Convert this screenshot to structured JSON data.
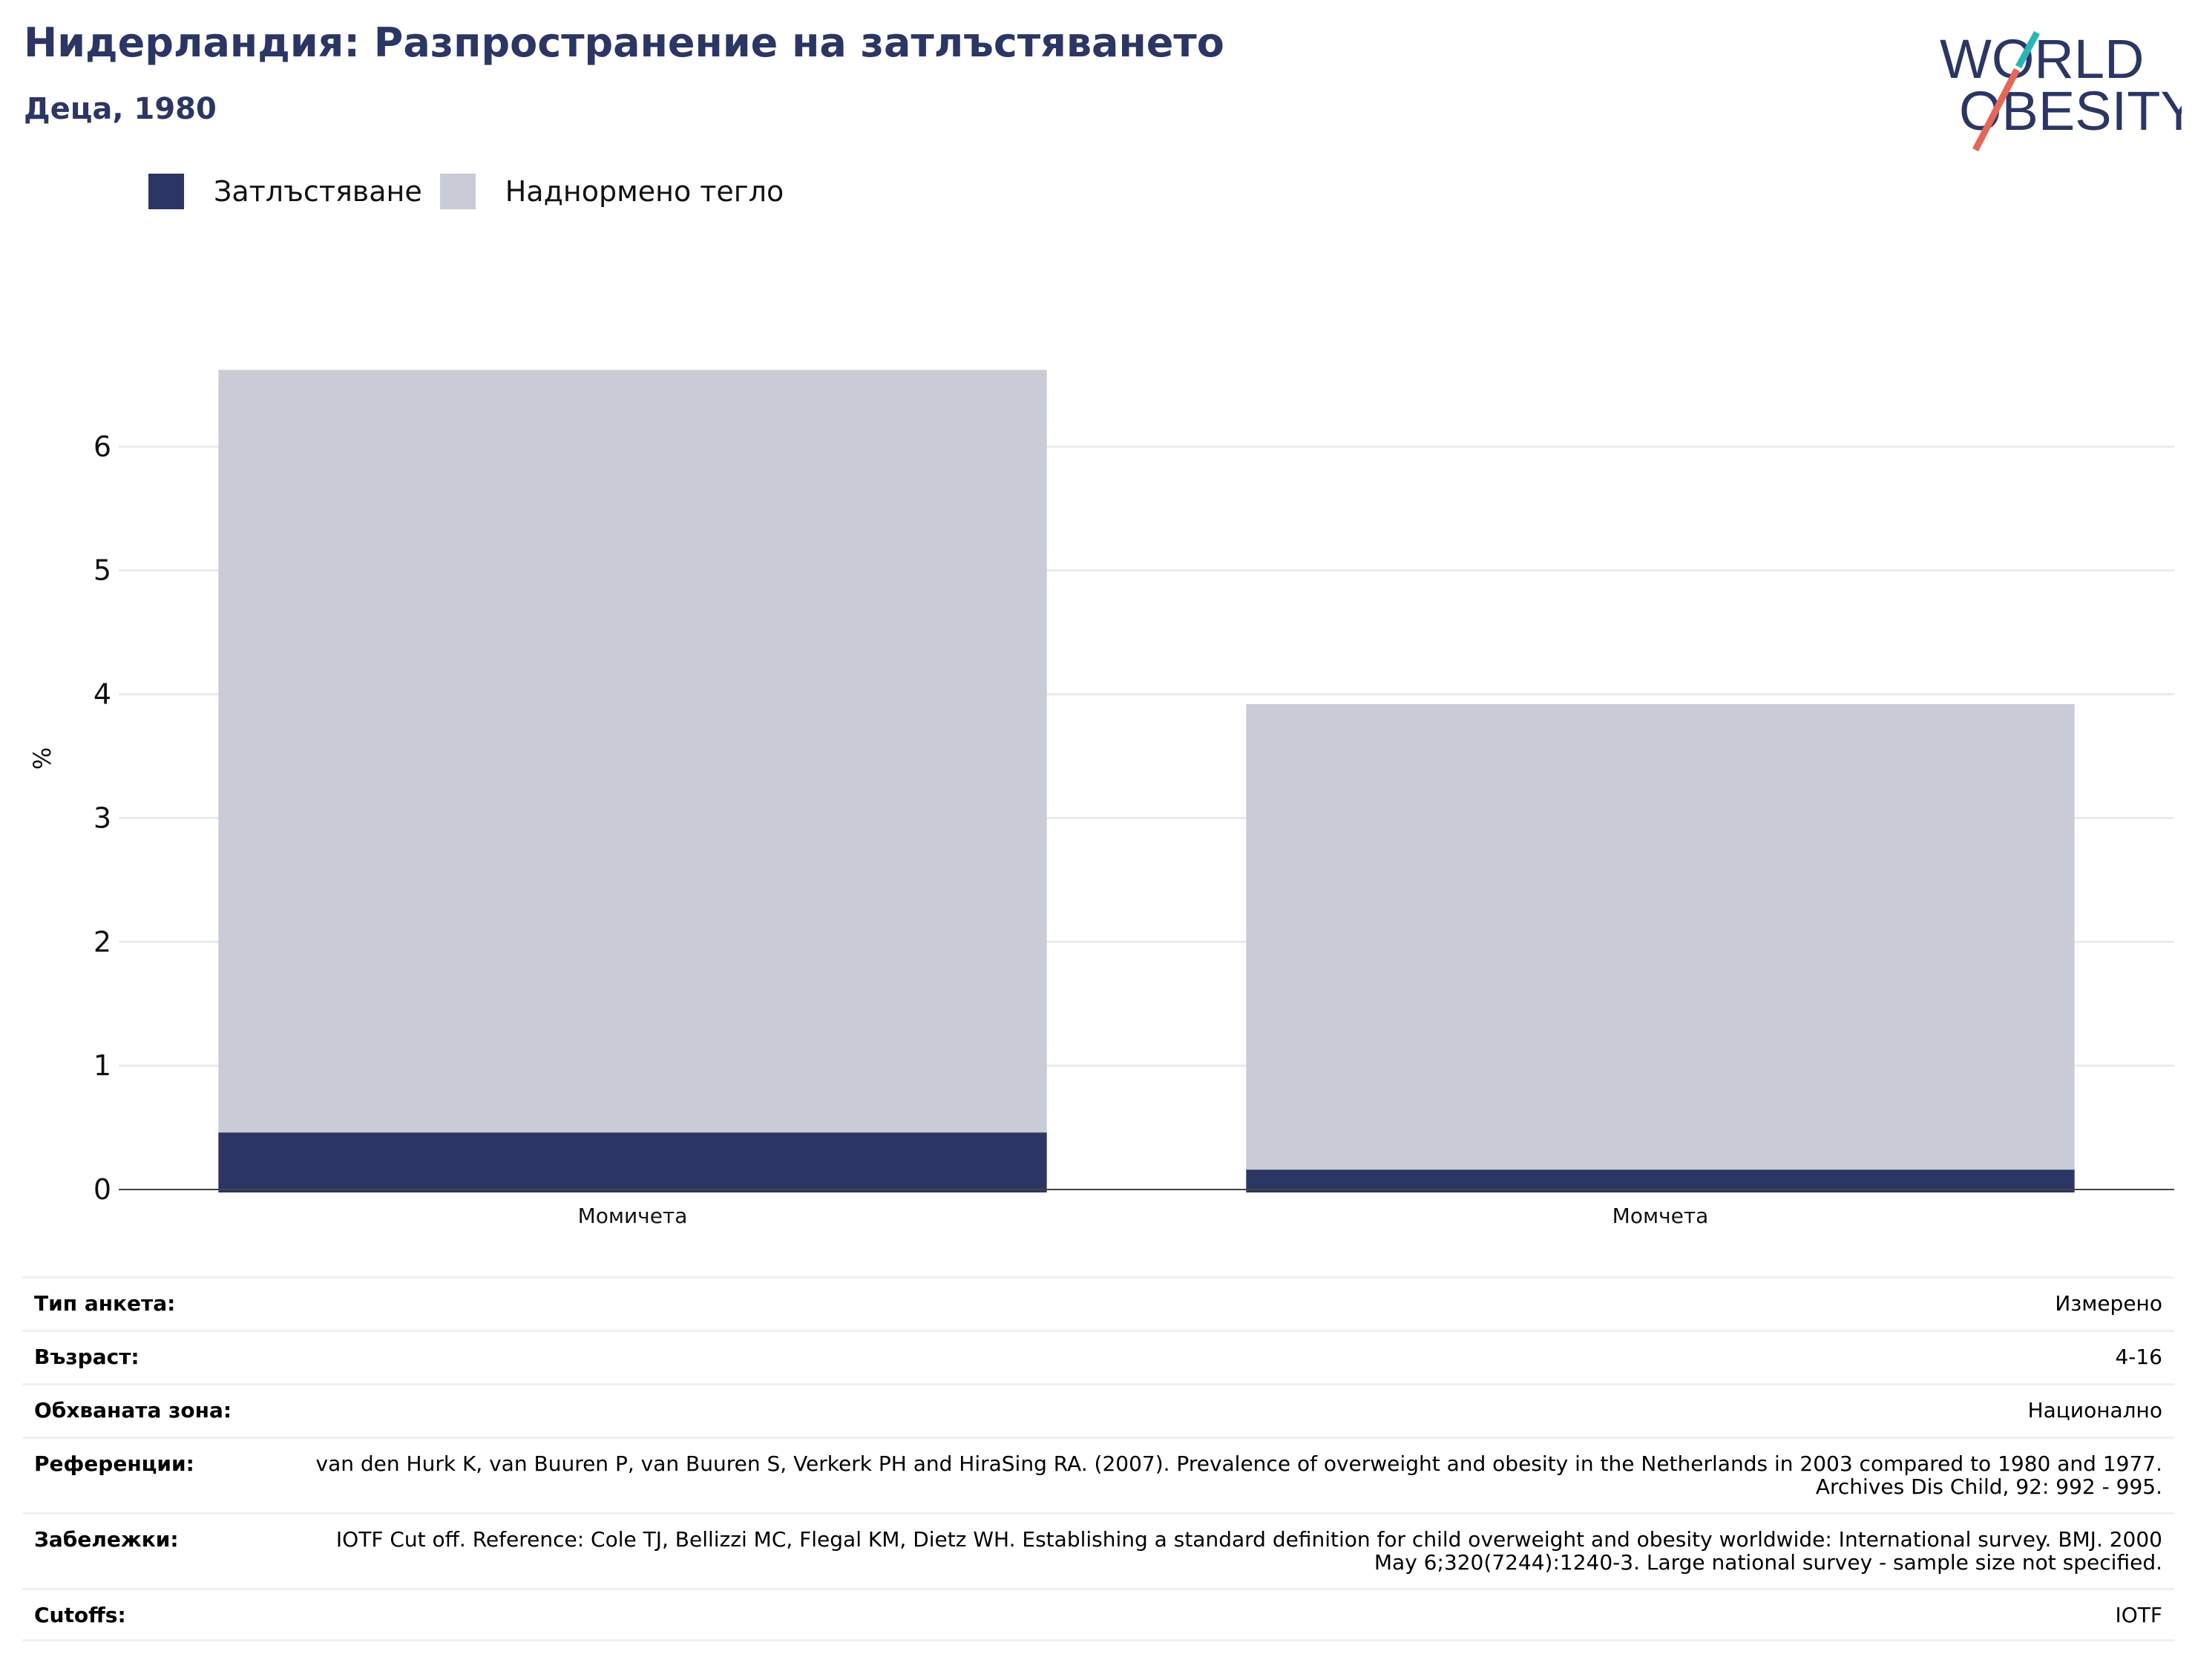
{
  "header": {
    "title": "Нидерландия: Разпространение на затлъстяването",
    "subtitle": "Деца, 1980"
  },
  "logo": {
    "line1": "WORLD",
    "line2": "OBESITY"
  },
  "legend": [
    {
      "label": "Затлъстяване",
      "color": "#2b3664"
    },
    {
      "label": "Наднормено тегло",
      "color": "#c9cbd6"
    }
  ],
  "chart_data": {
    "type": "bar",
    "stacked": false,
    "categories": [
      "Момичета",
      "Момчета"
    ],
    "series": [
      {
        "name": "Наднормено тегло",
        "values": [
          6.62,
          3.92
        ],
        "color": "#c9cbd6"
      },
      {
        "name": "Затлъстяване",
        "values": [
          0.46,
          0.16
        ],
        "color": "#2b3664"
      }
    ],
    "ylabel": "%",
    "ylim": [
      0,
      7
    ],
    "yticks": [
      0,
      1,
      2,
      3,
      4,
      5,
      6
    ],
    "grid": true,
    "legend_position": "top-left"
  },
  "meta": [
    {
      "label": "Тип анкета:",
      "value": "Измерено"
    },
    {
      "label": "Възраст:",
      "value": "4-16"
    },
    {
      "label": "Обхваната зона:",
      "value": "Национално"
    },
    {
      "label": "Референции:",
      "value": "van den Hurk K, van Buuren P, van Buuren S, Verkerk PH and HiraSing RA. (2007). Prevalence of overweight and obesity in the Netherlands in 2003 compared to 1980 and 1977. Archives Dis Child, 92: 992 - 995."
    },
    {
      "label": "Забележки:",
      "value": "IOTF Cut off. Reference: Cole TJ, Bellizzi MC, Flegal KM, Dietz WH. Establishing a standard definition for child overweight and obesity worldwide: International survey. BMJ. 2000 May 6;320(7244):1240-3. Large national survey - sample size not specified."
    },
    {
      "label": "Cutoffs:",
      "value": "IOTF"
    }
  ]
}
